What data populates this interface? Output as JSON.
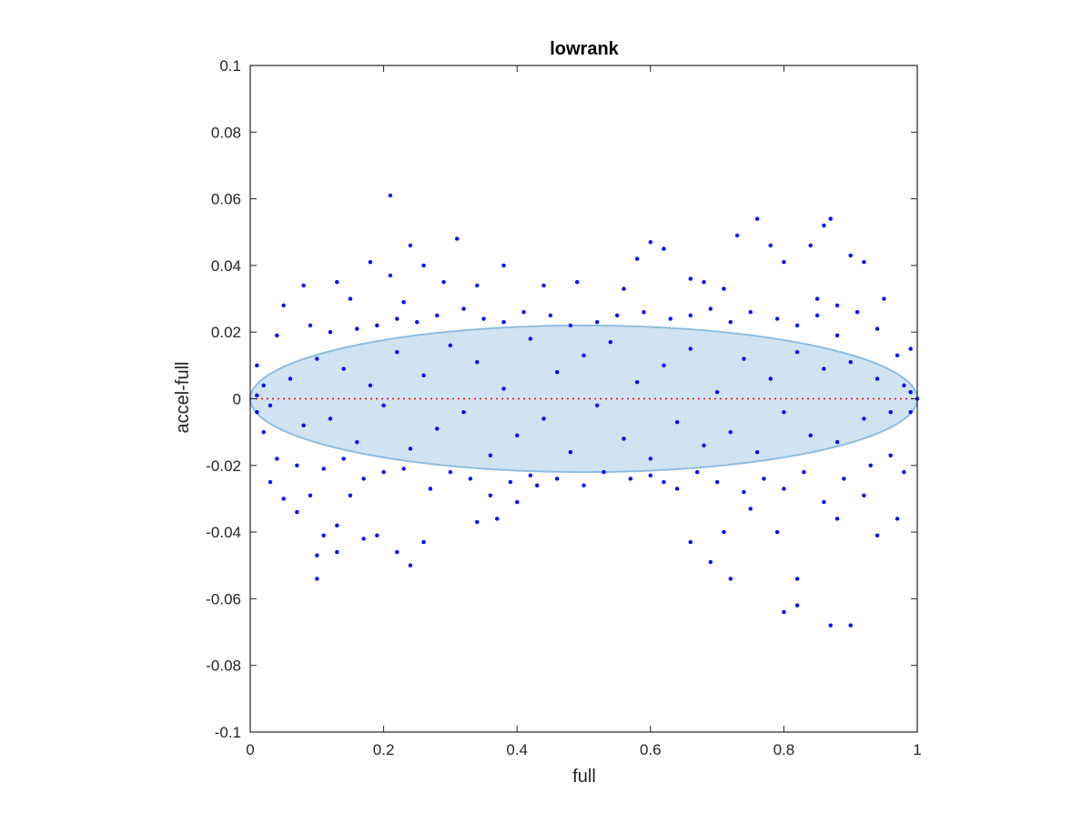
{
  "chart_data": {
    "type": "scatter",
    "title": "lowrank",
    "xlabel": "full",
    "ylabel": "accel-full",
    "xlim": [
      0,
      1
    ],
    "ylim": [
      -0.1,
      0.1
    ],
    "xticks": [
      0,
      0.2,
      0.4,
      0.6,
      0.8,
      1
    ],
    "xtick_labels": [
      "0",
      "0.2",
      "0.4",
      "0.6",
      "0.8",
      "1"
    ],
    "yticks": [
      -0.1,
      -0.08,
      -0.06,
      -0.04,
      -0.02,
      0,
      0.02,
      0.04,
      0.06,
      0.08,
      0.1
    ],
    "ytick_labels": [
      "-0.1",
      "-0.08",
      "-0.06",
      "-0.04",
      "-0.02",
      "0",
      "0.02",
      "0.04",
      "0.06",
      "0.08",
      "0.1"
    ],
    "grid": false,
    "reference_line": {
      "y": 0,
      "style": "dotted",
      "color": "#ff0000"
    },
    "ellipse": {
      "cx": 0.5,
      "cy": 0,
      "rx": 0.5,
      "ry": 0.022,
      "fill": "#cfe3f2",
      "stroke": "#8fbde0"
    },
    "point_color": "#0000ff",
    "points": [
      [
        0.21,
        0.061
      ],
      [
        0.76,
        0.054
      ],
      [
        0.87,
        0.054
      ],
      [
        0.86,
        0.052
      ],
      [
        0.73,
        0.049
      ],
      [
        0.31,
        0.048
      ],
      [
        0.6,
        0.047
      ],
      [
        0.84,
        0.046
      ],
      [
        0.24,
        0.046
      ],
      [
        0.78,
        0.046
      ],
      [
        0.62,
        0.045
      ],
      [
        0.9,
        0.043
      ],
      [
        0.58,
        0.042
      ],
      [
        0.92,
        0.041
      ],
      [
        0.8,
        0.041
      ],
      [
        0.18,
        0.041
      ],
      [
        0.26,
        0.04
      ],
      [
        0.38,
        0.04
      ],
      [
        0.21,
        0.037
      ],
      [
        0.66,
        0.036
      ],
      [
        0.68,
        0.035
      ],
      [
        0.29,
        0.035
      ],
      [
        0.13,
        0.035
      ],
      [
        0.49,
        0.035
      ],
      [
        0.34,
        0.034
      ],
      [
        0.44,
        0.034
      ],
      [
        0.08,
        0.034
      ],
      [
        0.56,
        0.033
      ],
      [
        0.71,
        0.033
      ],
      [
        0.85,
        0.03
      ],
      [
        0.95,
        0.03
      ],
      [
        0.15,
        0.03
      ],
      [
        0.05,
        0.028
      ],
      [
        0.23,
        0.029
      ],
      [
        0.88,
        0.028
      ],
      [
        0.99,
        0.015
      ],
      [
        0.8,
        -0.064
      ],
      [
        0.87,
        -0.068
      ],
      [
        0.9,
        -0.068
      ],
      [
        0.82,
        -0.062
      ],
      [
        0.82,
        -0.054
      ],
      [
        0.1,
        -0.054
      ],
      [
        0.72,
        -0.054
      ],
      [
        0.24,
        -0.05
      ],
      [
        0.69,
        -0.049
      ],
      [
        0.1,
        -0.047
      ],
      [
        0.22,
        -0.046
      ],
      [
        0.13,
        -0.046
      ],
      [
        0.66,
        -0.043
      ],
      [
        0.26,
        -0.043
      ],
      [
        0.17,
        -0.042
      ],
      [
        0.11,
        -0.041
      ],
      [
        0.19,
        -0.041
      ],
      [
        0.94,
        -0.041
      ],
      [
        0.71,
        -0.04
      ],
      [
        0.79,
        -0.04
      ],
      [
        0.13,
        -0.038
      ],
      [
        0.34,
        -0.037
      ],
      [
        0.37,
        -0.036
      ],
      [
        0.88,
        -0.036
      ],
      [
        0.97,
        -0.036
      ],
      [
        0.07,
        -0.034
      ],
      [
        0.75,
        -0.033
      ],
      [
        0.4,
        -0.031
      ],
      [
        0.05,
        -0.03
      ],
      [
        0.09,
        -0.029
      ],
      [
        0.15,
        -0.029
      ],
      [
        0.92,
        -0.029
      ],
      [
        0.43,
        -0.026
      ],
      [
        0.62,
        -0.025
      ],
      [
        0.03,
        -0.025
      ],
      [
        0.98,
        -0.022
      ],
      [
        0.01,
        0.01
      ],
      [
        0.02,
        -0.01
      ],
      [
        0.01,
        -0.004
      ],
      [
        0.02,
        0.004
      ],
      [
        0.99,
        0.002
      ],
      [
        1.0,
        0.0
      ],
      [
        0.99,
        -0.004
      ],
      [
        0.01,
        0.001
      ],
      [
        0.04,
        0.019
      ],
      [
        0.04,
        -0.018
      ],
      [
        0.07,
        -0.02
      ],
      [
        0.09,
        0.022
      ],
      [
        0.11,
        -0.021
      ],
      [
        0.12,
        0.02
      ],
      [
        0.14,
        -0.018
      ],
      [
        0.16,
        0.021
      ],
      [
        0.17,
        -0.024
      ],
      [
        0.19,
        0.022
      ],
      [
        0.2,
        -0.022
      ],
      [
        0.22,
        0.024
      ],
      [
        0.23,
        -0.021
      ],
      [
        0.25,
        0.023
      ],
      [
        0.27,
        -0.027
      ],
      [
        0.28,
        0.025
      ],
      [
        0.3,
        -0.022
      ],
      [
        0.32,
        0.027
      ],
      [
        0.33,
        -0.024
      ],
      [
        0.35,
        0.024
      ],
      [
        0.36,
        -0.029
      ],
      [
        0.38,
        0.023
      ],
      [
        0.39,
        -0.025
      ],
      [
        0.41,
        0.026
      ],
      [
        0.42,
        -0.023
      ],
      [
        0.45,
        0.025
      ],
      [
        0.46,
        -0.024
      ],
      [
        0.48,
        0.022
      ],
      [
        0.5,
        -0.026
      ],
      [
        0.52,
        0.023
      ],
      [
        0.53,
        -0.022
      ],
      [
        0.55,
        0.025
      ],
      [
        0.57,
        -0.024
      ],
      [
        0.59,
        0.026
      ],
      [
        0.6,
        -0.023
      ],
      [
        0.63,
        0.024
      ],
      [
        0.64,
        -0.027
      ],
      [
        0.66,
        0.025
      ],
      [
        0.67,
        -0.022
      ],
      [
        0.69,
        0.027
      ],
      [
        0.7,
        -0.025
      ],
      [
        0.72,
        0.023
      ],
      [
        0.74,
        -0.028
      ],
      [
        0.75,
        0.026
      ],
      [
        0.77,
        -0.024
      ],
      [
        0.79,
        0.024
      ],
      [
        0.8,
        -0.027
      ],
      [
        0.82,
        0.022
      ],
      [
        0.83,
        -0.022
      ],
      [
        0.85,
        0.025
      ],
      [
        0.86,
        -0.031
      ],
      [
        0.88,
        0.019
      ],
      [
        0.89,
        -0.024
      ],
      [
        0.91,
        0.026
      ],
      [
        0.93,
        -0.02
      ],
      [
        0.94,
        0.021
      ],
      [
        0.96,
        -0.017
      ],
      [
        0.97,
        0.013
      ],
      [
        0.06,
        0.006
      ],
      [
        0.08,
        -0.008
      ],
      [
        0.1,
        0.012
      ],
      [
        0.12,
        -0.006
      ],
      [
        0.14,
        0.009
      ],
      [
        0.16,
        -0.013
      ],
      [
        0.18,
        0.004
      ],
      [
        0.2,
        -0.002
      ],
      [
        0.22,
        0.014
      ],
      [
        0.24,
        -0.015
      ],
      [
        0.26,
        0.007
      ],
      [
        0.28,
        -0.009
      ],
      [
        0.3,
        0.016
      ],
      [
        0.32,
        -0.004
      ],
      [
        0.34,
        0.011
      ],
      [
        0.36,
        -0.017
      ],
      [
        0.38,
        0.003
      ],
      [
        0.4,
        -0.011
      ],
      [
        0.42,
        0.018
      ],
      [
        0.44,
        -0.006
      ],
      [
        0.46,
        0.008
      ],
      [
        0.48,
        -0.016
      ],
      [
        0.5,
        0.013
      ],
      [
        0.52,
        -0.002
      ],
      [
        0.54,
        0.017
      ],
      [
        0.56,
        -0.012
      ],
      [
        0.58,
        0.005
      ],
      [
        0.6,
        -0.018
      ],
      [
        0.62,
        0.01
      ],
      [
        0.64,
        -0.007
      ],
      [
        0.66,
        0.015
      ],
      [
        0.68,
        -0.014
      ],
      [
        0.7,
        0.002
      ],
      [
        0.72,
        -0.01
      ],
      [
        0.74,
        0.012
      ],
      [
        0.76,
        -0.016
      ],
      [
        0.78,
        0.006
      ],
      [
        0.8,
        -0.004
      ],
      [
        0.82,
        0.014
      ],
      [
        0.84,
        -0.011
      ],
      [
        0.86,
        0.009
      ],
      [
        0.88,
        -0.013
      ],
      [
        0.9,
        0.011
      ],
      [
        0.92,
        -0.006
      ],
      [
        0.94,
        0.006
      ],
      [
        0.96,
        -0.004
      ],
      [
        0.98,
        0.004
      ],
      [
        0.03,
        -0.002
      ]
    ]
  }
}
